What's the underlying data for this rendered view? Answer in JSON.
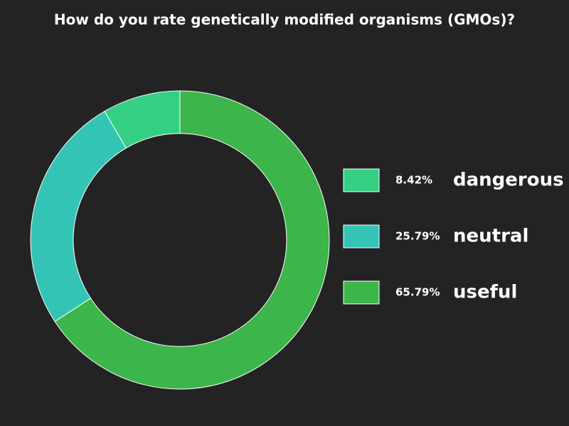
{
  "chart_data": {
    "type": "donut",
    "title": "How do you rate genetically modified organisms (GMOs)?",
    "categories": [
      "dangerous",
      "neutral",
      "useful"
    ],
    "values": [
      8.42,
      25.79,
      65.79
    ],
    "value_labels": [
      "8.42%",
      "25.79%",
      "65.79%"
    ],
    "colors": [
      "#34cf82",
      "#33c4b5",
      "#3cb54a"
    ]
  }
}
